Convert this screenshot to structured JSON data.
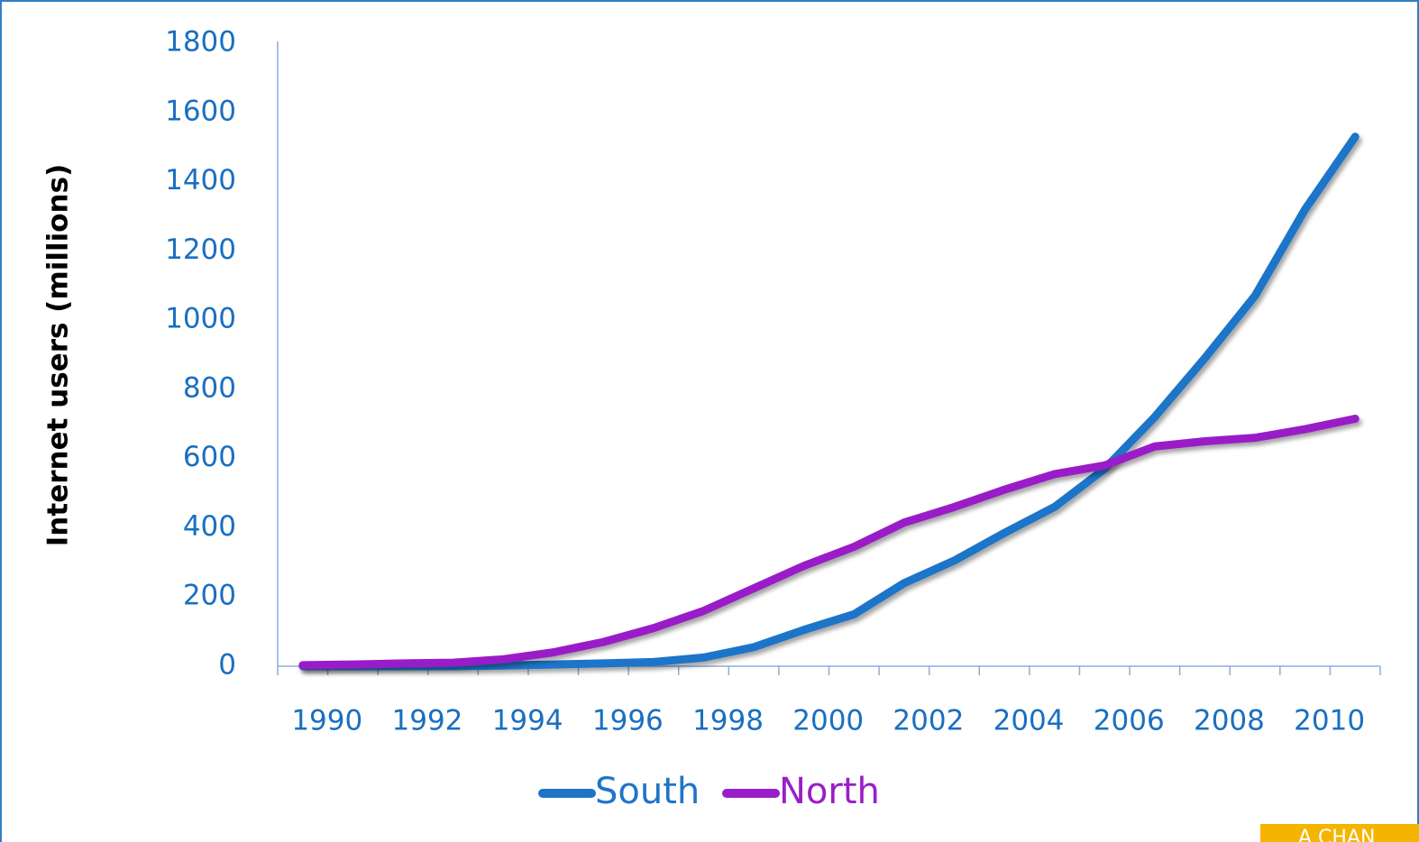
{
  "chart_data": {
    "type": "line",
    "y_label": "Internet users (millions)",
    "categories": [
      "1990",
      null,
      "1992",
      null,
      "1994",
      null,
      "1996",
      null,
      "1998",
      null,
      "2000",
      null,
      "2002",
      null,
      "2004",
      null,
      "2006",
      null,
      "2008",
      null,
      "2010",
      null
    ],
    "series": [
      {
        "name": "South",
        "color": "#1f74c8",
        "values": [
          0,
          0,
          0,
          0,
          2,
          5,
          8,
          12,
          25,
          55,
          105,
          150,
          240,
          305,
          385,
          460,
          570,
          720,
          890,
          1070,
          1320,
          1530
        ]
      },
      {
        "name": "North",
        "color": "#9a1ec8",
        "values": [
          3,
          5,
          8,
          10,
          20,
          40,
          70,
          110,
          160,
          225,
          290,
          345,
          415,
          460,
          510,
          555,
          580,
          635,
          650,
          660,
          685,
          715
        ]
      }
    ],
    "ylim": [
      0,
      1800
    ],
    "yticks": [
      0,
      200,
      400,
      600,
      800,
      1000,
      1200,
      1400,
      1600,
      1800
    ],
    "grid": false,
    "legend": "bottom",
    "annotation": "A CHAN"
  }
}
